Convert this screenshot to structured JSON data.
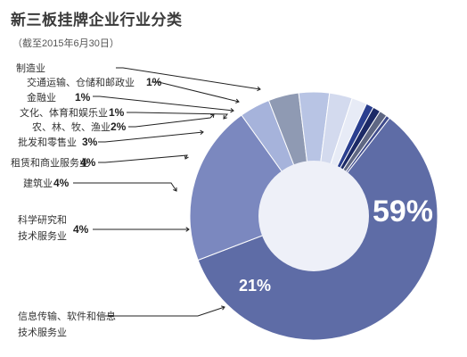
{
  "chart_data": {
    "type": "pie",
    "title": "新三板挂牌企业行业分类",
    "subtitle": "（截至2015年6月30日）",
    "slices": [
      {
        "label": "信息传输、软件和信息技术服务业",
        "value": 59,
        "value_label": "59%",
        "color": "#5e6ca6"
      },
      {
        "label": "制造业",
        "value": 21,
        "value_label": "21%",
        "color": "#7b88bf"
      },
      {
        "label": "科学研究和技术服务业",
        "value": 4,
        "value_label": "4%",
        "color": "#a6b3db"
      },
      {
        "label": "建筑业",
        "value": 4,
        "value_label": "4%",
        "color": "#8f9ab3"
      },
      {
        "label": "租赁和商业服务业",
        "value": 4,
        "value_label": "4%",
        "color": "#b8c4e4"
      },
      {
        "label": "批发和零售业",
        "value": 3,
        "value_label": "3%",
        "color": "#d3daee"
      },
      {
        "label": "农、林、牧、渔业",
        "value": 2,
        "value_label": "2%",
        "color": "#e7ebf6"
      },
      {
        "label": "文化、体育和娱乐业",
        "value": 1,
        "value_label": "1%",
        "color": "#2a3f8f"
      },
      {
        "label": "金融业",
        "value": 1,
        "value_label": "1%",
        "color": "#1c2a66"
      },
      {
        "label": "交通运输、仓储和邮政业",
        "value": 1,
        "value_label": "1%",
        "color": "#5f6783"
      },
      {
        "label": "制造业",
        "value": 0.5,
        "value_label": "",
        "color": "#3f4b8c"
      }
    ],
    "legend_labels": [
      {
        "text": "制造业",
        "value": ""
      },
      {
        "text": "交通运输、仓储和邮政业",
        "value": "1%"
      },
      {
        "text": "金融业",
        "value": "1%"
      },
      {
        "text": "文化、体育和娱乐业",
        "value": "1%"
      },
      {
        "text": "农、林、牧、渔业",
        "value": "2%"
      },
      {
        "text": "批发和零售业",
        "value": "3%"
      },
      {
        "text": "租赁和商业服务业",
        "value": "4%"
      },
      {
        "text": "建筑业",
        "value": "4%"
      },
      {
        "text": "科学研究和技术服务业",
        "value": "4%"
      },
      {
        "text": "信息传输、软件和信息技术服务业",
        "value": ""
      }
    ],
    "inside_labels": [
      {
        "text": "59%"
      },
      {
        "text": "21%"
      }
    ]
  }
}
